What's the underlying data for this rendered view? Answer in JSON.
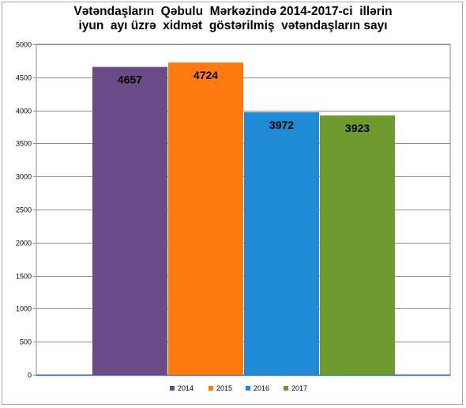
{
  "chart_data": {
    "type": "bar",
    "title_lines": [
      "Vətəndaşların  Qəbulu  Mərkəzində 2014-2017-ci  illərin",
      "iyun  ayı üzrə  xidmət  göstərilmiş  vətəndaşların sayı"
    ],
    "categories": [
      "2014",
      "2015",
      "2016",
      "2017"
    ],
    "values": [
      4657,
      4724,
      3972,
      3923
    ],
    "data_labels": [
      "4657",
      "4724",
      "3972",
      "3923"
    ],
    "colors": [
      "#6a4a87",
      "#ff7b0f",
      "#1f8ad6",
      "#6e9a2e"
    ],
    "ylim": [
      0,
      5000
    ],
    "yticks": [
      0,
      500,
      1000,
      1500,
      2000,
      2500,
      3000,
      3500,
      4000,
      4500,
      5000
    ],
    "grid": true,
    "legend_position": "bottom",
    "legend": [
      "2014",
      "2015",
      "2016",
      "2017"
    ],
    "xlabel": "",
    "ylabel": ""
  }
}
